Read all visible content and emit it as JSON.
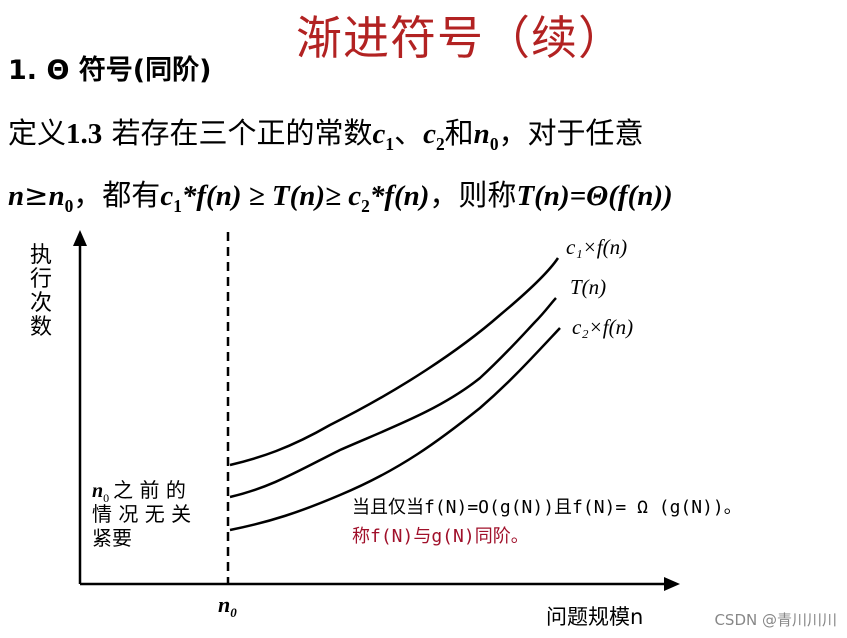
{
  "title": "渐进符号（续）",
  "subtitle": "1. Θ 符号(同阶)",
  "definition": {
    "line1": {
      "prefix": "定义",
      "num": "1.3",
      "text1": " 若存在三个正的常数",
      "c1": "c",
      "c1_sub": "1",
      "sep1": "、",
      "c2": "c",
      "c2_sub": "2",
      "and": "和",
      "n0": "n",
      "n0_sub": "0",
      "text2": "，对于任意"
    },
    "line2": {
      "n": "n",
      "geq": "≥",
      "n0": "n",
      "n0_sub": "0",
      "text1": "，都有",
      "expr1": "c",
      "expr1_sub": "1",
      "expr1_rest": "*f(n) ≥ T(n)≥ c",
      "expr2_sub": "2",
      "expr2_rest": "*f(n)",
      "text2": "，则称",
      "concl": "T(n)=Θ(f(n))"
    }
  },
  "diagram": {
    "y_axis_label": [
      "执",
      "行",
      "次",
      "数"
    ],
    "x_axis_label": "问题规模n",
    "n0_label": "n",
    "n0_sub": "0",
    "curves": [
      {
        "label": "c₁×f(n)"
      },
      {
        "label": "T(n)"
      },
      {
        "label": "c₂×f(n)"
      }
    ],
    "before_note": {
      "line1_n": "n",
      "line1_sub": "0",
      "line1_text": "之 前 的",
      "line2": "情 况 无 关",
      "line3": "紧要"
    },
    "statement": "当且仅当f(N)=O(g(N))且f(N)= Ω (g(N))。",
    "statement2": "称f(N)与g(N)同阶。",
    "statement2_color": "#a0102a"
  },
  "credit": "CSDN @青川川川"
}
